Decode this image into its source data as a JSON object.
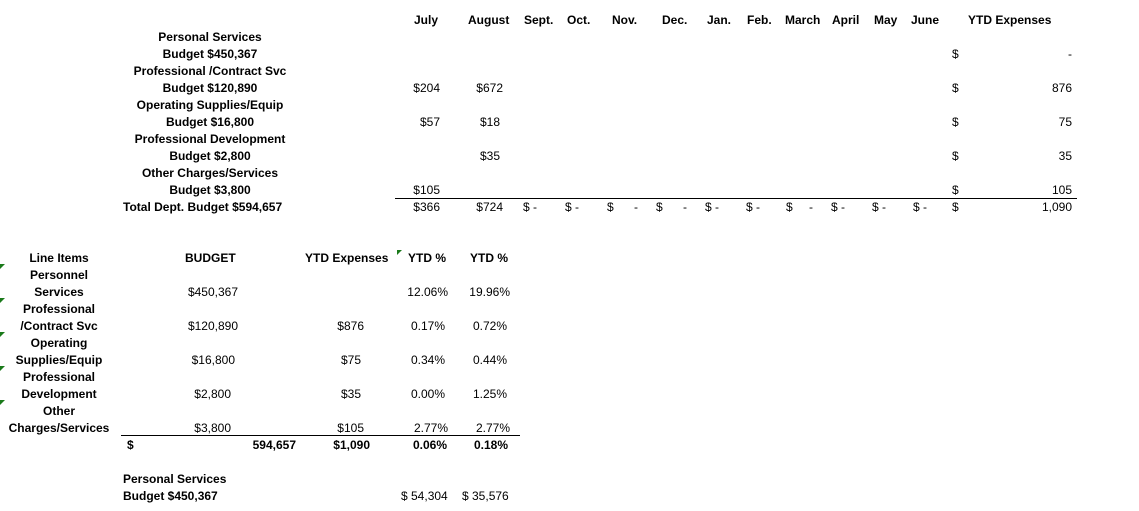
{
  "top_table": {
    "months": [
      "July",
      "August",
      "Sept.",
      "Oct.",
      "Nov.",
      "Dec.",
      "Jan.",
      "Feb.",
      "March",
      "April",
      "May",
      "June"
    ],
    "ytd_header": "YTD Expenses",
    "categories": [
      {
        "name": "Personal Services",
        "budget": "Budget $450,367",
        "july": "",
        "august": "",
        "dollar": "$",
        "ytd": "-"
      },
      {
        "name": "Professional /Contract Svc",
        "budget": "Budget $120,890",
        "july": "$204",
        "august": "$672",
        "dollar": "$",
        "ytd": "876"
      },
      {
        "name": "Operating Supplies/Equip",
        "budget": "Budget $16,800",
        "july": "$57",
        "august": "$18",
        "dollar": "$",
        "ytd": "75"
      },
      {
        "name": "Professional Development",
        "budget": "Budget $2,800",
        "july": "",
        "august": "$35",
        "dollar": "$",
        "ytd": "35"
      },
      {
        "name": "Other Charges/Services",
        "budget": "Budget $3,800",
        "july": "$105",
        "august": "",
        "dollar": "$",
        "ytd": "105"
      }
    ],
    "total": {
      "label": "Total Dept. Budget $594,657",
      "july": "$366",
      "august": "$724",
      "months_empty": [
        "$  -",
        "$  -",
        "$",
        "-",
        "$",
        "-",
        "$  -",
        "$  -",
        "$",
        "-",
        "$  -",
        "$  -",
        "$  -"
      ],
      "dollar": "$",
      "ytd": "1,090"
    }
  },
  "bottom_table": {
    "headers": {
      "line_items": "Line Items",
      "budget": "BUDGET",
      "ytd_expenses": "YTD Expenses",
      "ytd_pct_1": "YTD %",
      "ytd_pct_2": "YTD %"
    },
    "rows": [
      {
        "line1": "Personnel",
        "line2": "Services",
        "budget": "$450,367",
        "ytd": "",
        "pct1": "12.06%",
        "pct2": "19.96%"
      },
      {
        "line1": "Professional",
        "line2": "/Contract Svc",
        "budget": "$120,890",
        "ytd": "$876",
        "pct1": "0.17%",
        "pct2": "0.72%"
      },
      {
        "line1": "Operating",
        "line2": "Supplies/Equip",
        "budget": "$16,800",
        "ytd": "$75",
        "pct1": "0.34%",
        "pct2": "0.44%"
      },
      {
        "line1": "Professional",
        "line2": "Development",
        "budget": "$2,800",
        "ytd": "$35",
        "pct1": "0.00%",
        "pct2": "1.25%"
      },
      {
        "line1": "Other",
        "line2": "Charges/Services",
        "budget": "$3,800",
        "ytd": "$105",
        "pct1": "2.77%",
        "pct2": "2.77%"
      }
    ],
    "total": {
      "dollar": "$",
      "budget": "594,657",
      "ytd": "$1,090",
      "pct1": "0.06%",
      "pct2": "0.18%"
    }
  },
  "footer": {
    "name": "Personal Services",
    "budget": "Budget $450,367",
    "val1": "$ 54,304",
    "val2": "$ 35,576"
  }
}
